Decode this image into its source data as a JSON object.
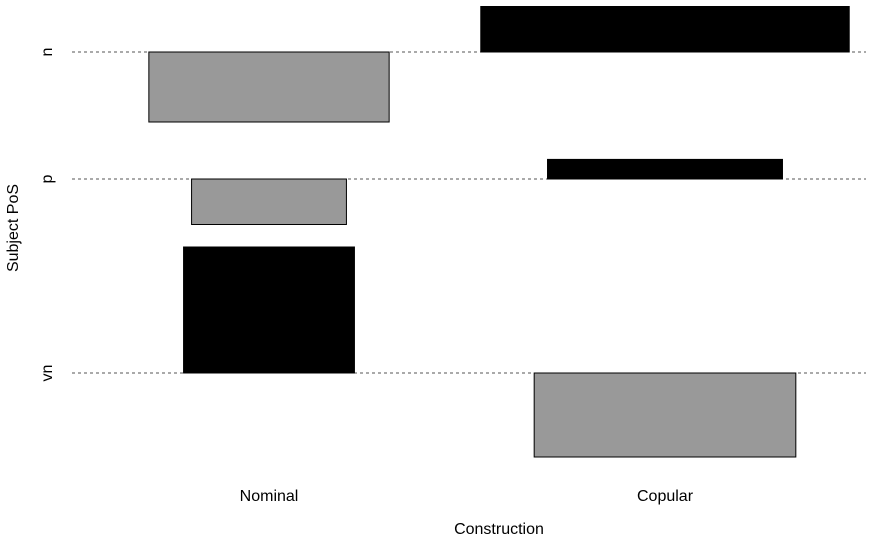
{
  "chart_data": {
    "type": "association_plot",
    "xlabel": "Construction",
    "ylabel": "Subject PoS",
    "x_categories": [
      "Nominal",
      "Copular"
    ],
    "y_categories": [
      "n",
      "p",
      "vn"
    ],
    "colors": {
      "positive": "#000000",
      "negative": "#999999",
      "baseline": "#555555"
    },
    "cells": [
      {
        "construction": "Nominal",
        "pos": "n",
        "residual": -1.0,
        "sign": "negative"
      },
      {
        "construction": "Nominal",
        "pos": "p",
        "residual": -0.65,
        "sign": "negative"
      },
      {
        "construction": "Nominal",
        "pos": "vn",
        "residual": 1.8,
        "sign": "positive"
      },
      {
        "construction": "Copular",
        "pos": "n",
        "residual": 0.65,
        "sign": "positive"
      },
      {
        "construction": "Copular",
        "pos": "p",
        "residual": 0.28,
        "sign": "positive"
      },
      {
        "construction": "Copular",
        "pos": "vn",
        "residual": -1.2,
        "sign": "negative"
      }
    ],
    "bar_widths": {
      "Nominal": {
        "n": 0.45,
        "p": 0.29,
        "vn": 0.32
      },
      "Copular": {
        "n": 0.69,
        "p": 0.44,
        "vn": 0.49
      }
    },
    "grid": false,
    "legend": "none"
  }
}
